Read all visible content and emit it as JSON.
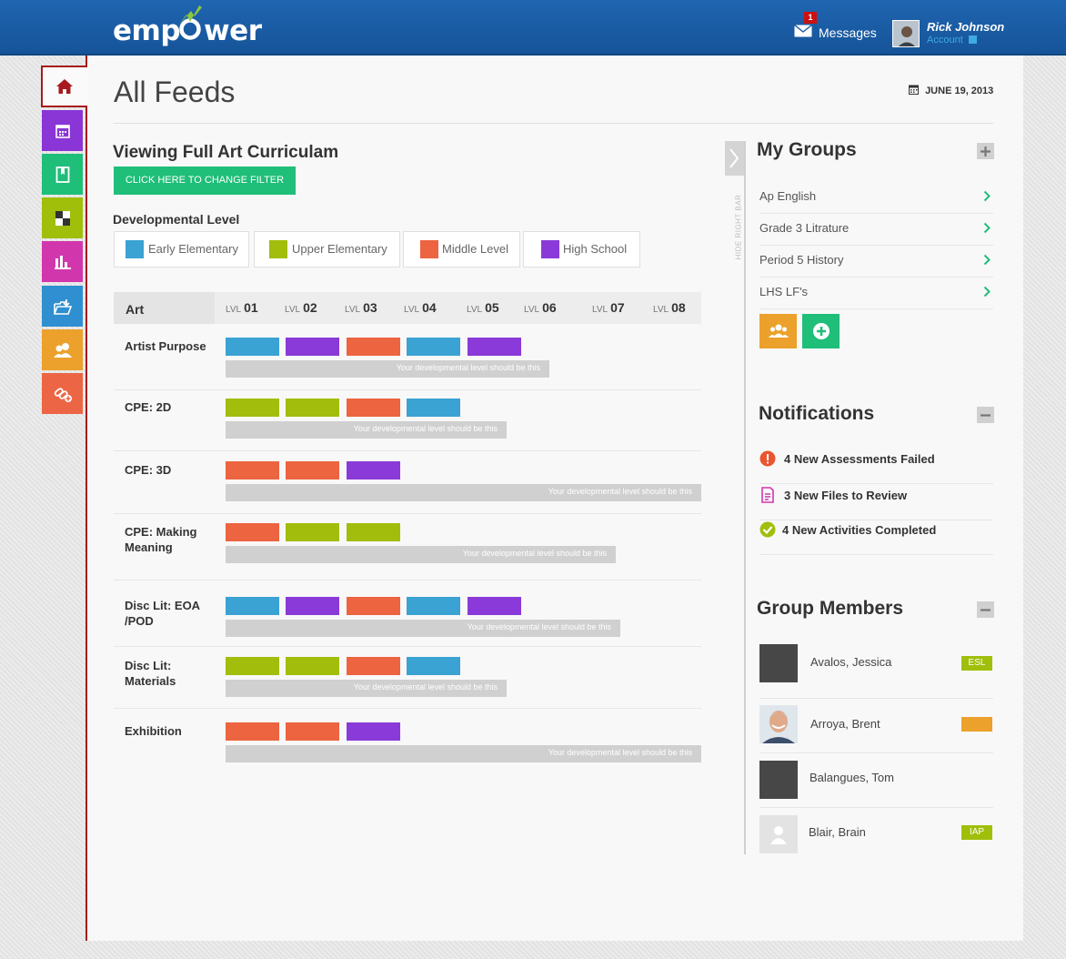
{
  "header": {
    "logo_text": "emp wer",
    "messages_label": "Messages",
    "messages_count": "1",
    "user_name": "Rick Johnson",
    "account_label": "Account"
  },
  "page": {
    "title": "All Feeds",
    "date": "JUNE 19, 2013"
  },
  "nav": {
    "items": [
      {
        "name": "home",
        "color": "#a7191d"
      },
      {
        "name": "calendar",
        "color": "#8a35d6"
      },
      {
        "name": "bookmark",
        "color": "#1fbe79"
      },
      {
        "name": "checker",
        "color": "#9fbf0b"
      },
      {
        "name": "bar-chart",
        "color": "#d236ad"
      },
      {
        "name": "folder-upload",
        "color": "#2f8fd0"
      },
      {
        "name": "users",
        "color": "#eba12b"
      },
      {
        "name": "link-add",
        "color": "#ec6544"
      }
    ]
  },
  "filter": {
    "viewing_title": "Viewing Full Art Curriculam",
    "change_button": "CLICK HERE TO CHANGE FILTER"
  },
  "developmental": {
    "title": "Developmental Level",
    "levels": [
      {
        "label": "Early Elementary",
        "color": "#3ba2d4"
      },
      {
        "label": "Upper Elementary",
        "color": "#a2bd0b"
      },
      {
        "label": "Middle Level",
        "color": "#ec6440"
      },
      {
        "label": "High School",
        "color": "#8a3ad8"
      }
    ]
  },
  "table": {
    "subject": "Art",
    "level_prefix": "LVL",
    "levels": [
      "01",
      "02",
      "03",
      "04",
      "05",
      "06",
      "07",
      "08"
    ],
    "dev_bar_text": "Your developmental level should be this",
    "rows": [
      {
        "label": "Artist Purpose",
        "bars": [
          "#3ba2d4",
          "#8a3ad8",
          "#ec6440",
          "#3ba2d4",
          "#8a3ad8"
        ],
        "dev_level": 0.68
      },
      {
        "label": "CPE: 2D",
        "bars": [
          "#a2bd0b",
          "#a2bd0b",
          "#ec6440",
          "#3ba2d4"
        ],
        "dev_level": 0.59
      },
      {
        "label": "CPE: 3D",
        "bars": [
          "#ec6440",
          "#ec6440",
          "#8a3ad8"
        ],
        "dev_level": 1.0
      },
      {
        "label": "CPE: Making Meaning",
        "bars": [
          "#ec6440",
          "#a2bd0b",
          "#a2bd0b"
        ],
        "dev_level": 0.82
      },
      {
        "label": "Disc Lit: EOA /POD",
        "bars": [
          "#3ba2d4",
          "#8a3ad8",
          "#ec6440",
          "#3ba2d4",
          "#8a3ad8"
        ],
        "dev_level": 0.83
      },
      {
        "label": "Disc Lit: Materials",
        "bars": [
          "#a2bd0b",
          "#a2bd0b",
          "#ec6440",
          "#3ba2d4"
        ],
        "dev_level": 0.59
      },
      {
        "label": "Exhibition",
        "bars": [
          "#ec6440",
          "#ec6440",
          "#8a3ad8"
        ],
        "dev_level": 1.0
      }
    ]
  },
  "sidebar": {
    "hide_label": "HIDE RIGHT BAR",
    "my_groups_title": "My Groups",
    "groups": [
      "Ap English",
      "Grade 3 Litrature",
      "Period 5 History",
      "LHS LF's"
    ],
    "notifications_title": "Notifications",
    "notifications": [
      {
        "text": "4 New Assessments Failed",
        "icon": "alert-icon",
        "color": "#e8572f"
      },
      {
        "text": "3 New Files to Review",
        "icon": "file-icon",
        "color": "#d236ad"
      },
      {
        "text": "4 New Activities Completed",
        "icon": "check-icon",
        "color": "#9fbf0b"
      }
    ],
    "members_title": "Group Members",
    "members": [
      {
        "name": "Avalos, Jessica",
        "tag": "ESL",
        "tag_color": "#9fbf0b",
        "avatar": "dark"
      },
      {
        "name": "Arroya, Brent",
        "tag": "",
        "tag_color": "#eba12b",
        "avatar": "photo"
      },
      {
        "name": "Balangues, Tom",
        "tag": "",
        "tag_color": "",
        "avatar": "dark"
      },
      {
        "name": "Blair, Brain",
        "tag": "IAP",
        "tag_color": "#9fbf0b",
        "avatar": "placeholder"
      }
    ]
  }
}
